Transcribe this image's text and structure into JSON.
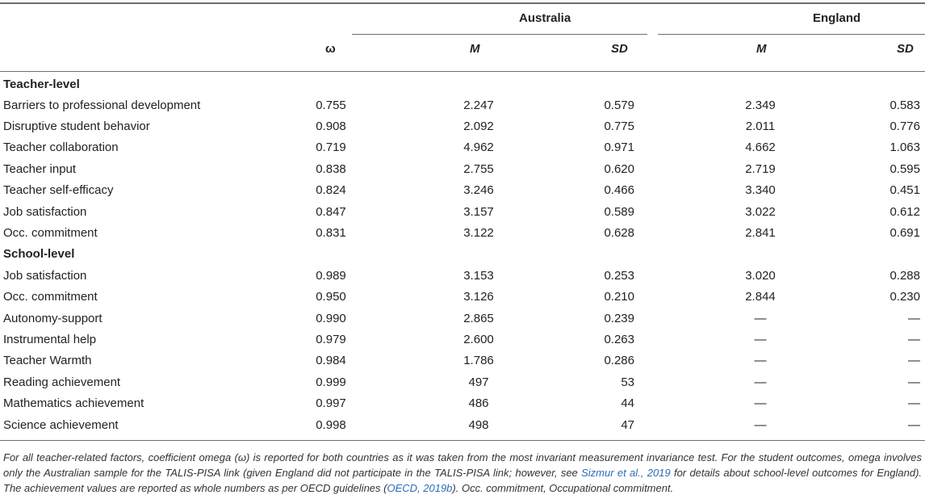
{
  "header": {
    "group_australia": "Australia",
    "group_england": "England",
    "omega": "ω",
    "m": "M",
    "sd": "SD"
  },
  "sections": [
    {
      "title": "Teacher-level",
      "rows": [
        {
          "label": "Barriers to professional development",
          "omega": "0.755",
          "au_m": "2.247",
          "au_sd": "0.579",
          "en_m": "2.349",
          "en_sd": "0.583"
        },
        {
          "label": "Disruptive student behavior",
          "omega": "0.908",
          "au_m": "2.092",
          "au_sd": "0.775",
          "en_m": "2.011",
          "en_sd": "0.776"
        },
        {
          "label": "Teacher collaboration",
          "omega": "0.719",
          "au_m": "4.962",
          "au_sd": "0.971",
          "en_m": "4.662",
          "en_sd": "1.063"
        },
        {
          "label": "Teacher input",
          "omega": "0.838",
          "au_m": "2.755",
          "au_sd": "0.620",
          "en_m": "2.719",
          "en_sd": "0.595"
        },
        {
          "label": "Teacher self-efficacy",
          "omega": "0.824",
          "au_m": "3.246",
          "au_sd": "0.466",
          "en_m": "3.340",
          "en_sd": "0.451"
        },
        {
          "label": "Job satisfaction",
          "omega": "0.847",
          "au_m": "3.157",
          "au_sd": "0.589",
          "en_m": "3.022",
          "en_sd": "0.612"
        },
        {
          "label": "Occ. commitment",
          "omega": "0.831",
          "au_m": "3.122",
          "au_sd": "0.628",
          "en_m": "2.841",
          "en_sd": "0.691"
        }
      ]
    },
    {
      "title": "School-level",
      "rows": [
        {
          "label": "Job satisfaction",
          "omega": "0.989",
          "au_m": "3.153",
          "au_sd": "0.253",
          "en_m": "3.020",
          "en_sd": "0.288"
        },
        {
          "label": "Occ. commitment",
          "omega": "0.950",
          "au_m": "3.126",
          "au_sd": "0.210",
          "en_m": "2.844",
          "en_sd": "0.230"
        },
        {
          "label": "Autonomy-support",
          "omega": "0.990",
          "au_m": "2.865",
          "au_sd": "0.239",
          "en_m": "—",
          "en_sd": "—"
        },
        {
          "label": "Instrumental help",
          "omega": "0.979",
          "au_m": "2.600",
          "au_sd": "0.263",
          "en_m": "—",
          "en_sd": "—"
        },
        {
          "label": "Teacher Warmth",
          "omega": "0.984",
          "au_m": "1.786",
          "au_sd": "0.286",
          "en_m": "—",
          "en_sd": "—"
        },
        {
          "label": "Reading achievement",
          "omega": "0.999",
          "au_m": "497",
          "au_sd": "53",
          "en_m": "—",
          "en_sd": "—"
        },
        {
          "label": "Mathematics achievement",
          "omega": "0.997",
          "au_m": "486",
          "au_sd": "44",
          "en_m": "—",
          "en_sd": "—"
        },
        {
          "label": "Science achievement",
          "omega": "0.998",
          "au_m": "498",
          "au_sd": "47",
          "en_m": "—",
          "en_sd": "—"
        }
      ]
    }
  ],
  "footnote": {
    "part1": "For all teacher-related factors, coefficient omega (ω) is reported for both countries as it was taken from the most invariant measurement invariance test. For the student outcomes, omega involves only the Australian sample for the TALIS-PISA link (given England did not participate in the TALIS-PISA link; however, see ",
    "link1": "Sizmur et al., 2019",
    "part2": " for details about school-level outcomes for England). The achievement values are reported as whole numbers as per OECD guidelines (",
    "link2": "OECD, 2019b",
    "part3": "). Occ. commitment, Occupational commitment."
  }
}
